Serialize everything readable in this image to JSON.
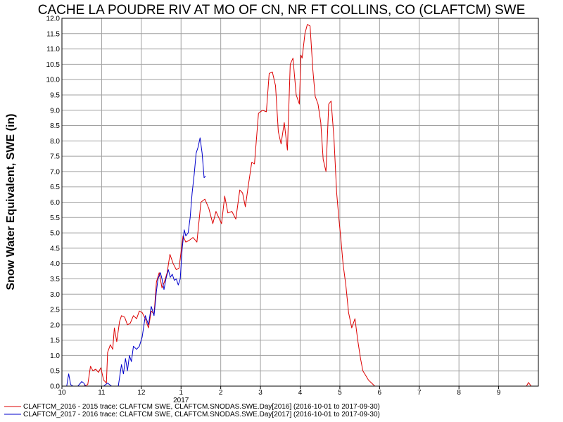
{
  "chart_data": {
    "type": "line",
    "title": "CACHE LA POUDRE RIV AT MO OF CN, NR FT COLLINS, CO (CLAFTCM) SWE",
    "xlabel": "",
    "ylabel": "Snow Water Equivalent, SWE (in)",
    "ylim": [
      0,
      12
    ],
    "yticks": [
      "0.0",
      "0.5",
      "1.0",
      "1.5",
      "2.0",
      "2.5",
      "3.0",
      "3.5",
      "4.0",
      "4.5",
      "5.0",
      "5.5",
      "6.0",
      "6.5",
      "7.0",
      "7.5",
      "8.0",
      "8.5",
      "9.0",
      "9.5",
      "10.0",
      "10.5",
      "11.0",
      "11.5",
      "12.0"
    ],
    "xlim_month_index": [
      0,
      12
    ],
    "xticks": [
      {
        "m": 0,
        "label": "10"
      },
      {
        "m": 1,
        "label": "11"
      },
      {
        "m": 2,
        "label": "12"
      },
      {
        "m": 3,
        "label": "1"
      },
      {
        "m": 4,
        "label": "2"
      },
      {
        "m": 5,
        "label": "3"
      },
      {
        "m": 6,
        "label": "4"
      },
      {
        "m": 7,
        "label": "5"
      },
      {
        "m": 8,
        "label": "6"
      },
      {
        "m": 9,
        "label": "7"
      },
      {
        "m": 10,
        "label": "8"
      },
      {
        "m": 11,
        "label": "9"
      }
    ],
    "year_label": {
      "m": 3,
      "label": "2017"
    },
    "grid": true,
    "legend_position": "bottom-left",
    "series": [
      {
        "name": "CLAFTCM_2016 - 2015 trace: CLAFTCM SWE, CLAFTCM.SNODAS.SWE.Day[2016] (2016-10-01 to 2017-09-30)",
        "color": "#dd0000",
        "x": [
          0,
          0.55,
          0.65,
          0.72,
          0.78,
          0.85,
          0.92,
          0.98,
          1.05,
          1.12,
          1.15,
          1.22,
          1.28,
          1.32,
          1.38,
          1.45,
          1.5,
          1.58,
          1.65,
          1.72,
          1.8,
          1.88,
          1.95,
          2.02,
          2.1,
          2.18,
          2.25,
          2.32,
          2.38,
          2.45,
          2.52,
          2.58,
          2.65,
          2.72,
          2.8,
          2.88,
          2.95,
          3.05,
          3.12,
          3.2,
          3.3,
          3.4,
          3.5,
          3.6,
          3.7,
          3.8,
          3.88,
          3.95,
          4.02,
          4.1,
          4.18,
          4.28,
          4.38,
          4.48,
          4.55,
          4.62,
          4.7,
          4.78,
          4.85,
          4.95,
          5.05,
          5.15,
          5.22,
          5.3,
          5.38,
          5.45,
          5.52,
          5.6,
          5.68,
          5.75,
          5.82,
          5.9,
          5.98,
          6.02,
          6.05,
          6.12,
          6.18,
          6.25,
          6.32,
          6.38,
          6.45,
          6.52,
          6.58,
          6.65,
          6.72,
          6.78,
          6.85,
          6.92,
          6.98,
          7.02,
          7.08,
          7.15,
          7.22,
          7.3,
          7.38,
          7.45,
          7.52,
          7.58,
          7.65,
          7.72,
          7.8,
          7.88,
          7.95,
          8.02,
          8.08,
          8.15,
          8.22,
          8.3,
          8.4,
          8.5,
          8.6,
          8.62,
          11.7,
          11.75,
          11.82
        ],
        "y": [
          0,
          0,
          0.05,
          0.65,
          0.5,
          0.55,
          0.45,
          0.6,
          0.2,
          0.1,
          1.1,
          1.35,
          1.2,
          1.9,
          1.45,
          2.1,
          2.3,
          2.25,
          2.0,
          2.05,
          2.3,
          2.2,
          2.45,
          2.4,
          2.2,
          1.9,
          2.45,
          2.35,
          3.4,
          3.7,
          3.2,
          3.4,
          3.7,
          4.3,
          4.0,
          3.8,
          3.85,
          4.9,
          4.7,
          4.75,
          4.85,
          4.7,
          6.0,
          6.1,
          5.8,
          5.3,
          5.7,
          5.5,
          5.3,
          6.2,
          5.65,
          5.7,
          5.45,
          6.4,
          6.3,
          5.85,
          6.6,
          7.3,
          7.25,
          8.9,
          9.0,
          8.95,
          10.2,
          10.25,
          9.8,
          8.3,
          7.9,
          8.6,
          7.7,
          10.5,
          10.7,
          9.5,
          9.2,
          10.8,
          10.7,
          11.5,
          11.8,
          11.75,
          10.3,
          9.45,
          9.2,
          8.6,
          7.4,
          7.0,
          9.2,
          9.3,
          8.1,
          6.3,
          5.4,
          4.9,
          4.0,
          3.3,
          2.4,
          1.9,
          2.2,
          1.5,
          0.9,
          0.5,
          0.35,
          0.2,
          0.1,
          0.0,
          0.0,
          0.0,
          0.0,
          0.0,
          0.0,
          0.0,
          0.0,
          0.0,
          0.0,
          0.0,
          0.0,
          0.12,
          0.0
        ],
        "x_note": "months since Oct 1"
      },
      {
        "name": "CLAFTCM_2017 - 2016 trace: CLAFTCM SWE, CLAFTCM.SNODAS.SWE.Day[2017] (2016-10-01 to 2017-09-30)",
        "color": "#0000cc",
        "x": [
          0,
          0.12,
          0.17,
          0.22,
          0.28,
          0.4,
          0.5,
          0.55,
          0.6,
          0.7,
          1.05,
          1.15,
          1.25,
          1.42,
          1.5,
          1.55,
          1.6,
          1.65,
          1.7,
          1.75,
          1.8,
          1.88,
          1.95,
          2.02,
          2.1,
          2.18,
          2.25,
          2.32,
          2.38,
          2.42,
          2.48,
          2.52,
          2.57,
          2.62,
          2.68,
          2.73,
          2.78,
          2.83,
          2.88,
          2.93,
          2.98,
          3.03,
          3.08,
          3.12,
          3.18,
          3.23,
          3.28,
          3.33,
          3.38,
          3.43,
          3.48,
          3.53,
          3.58,
          3.62
        ],
        "y": [
          0.0,
          0.0,
          0.4,
          0.05,
          0.0,
          0.0,
          0.15,
          0.1,
          0.0,
          0.0,
          0.0,
          0.1,
          0.0,
          0.0,
          0.7,
          0.4,
          0.9,
          0.5,
          1.0,
          0.8,
          1.3,
          1.2,
          1.3,
          1.6,
          2.3,
          2.0,
          2.6,
          2.3,
          3.1,
          3.5,
          3.7,
          3.5,
          3.15,
          3.5,
          3.8,
          3.55,
          3.65,
          3.45,
          3.5,
          3.3,
          3.5,
          4.5,
          5.1,
          4.9,
          5.0,
          5.5,
          6.3,
          6.9,
          7.6,
          7.8,
          8.1,
          7.6,
          6.8,
          6.85
        ],
        "x_note": "months since Oct 1"
      }
    ]
  }
}
